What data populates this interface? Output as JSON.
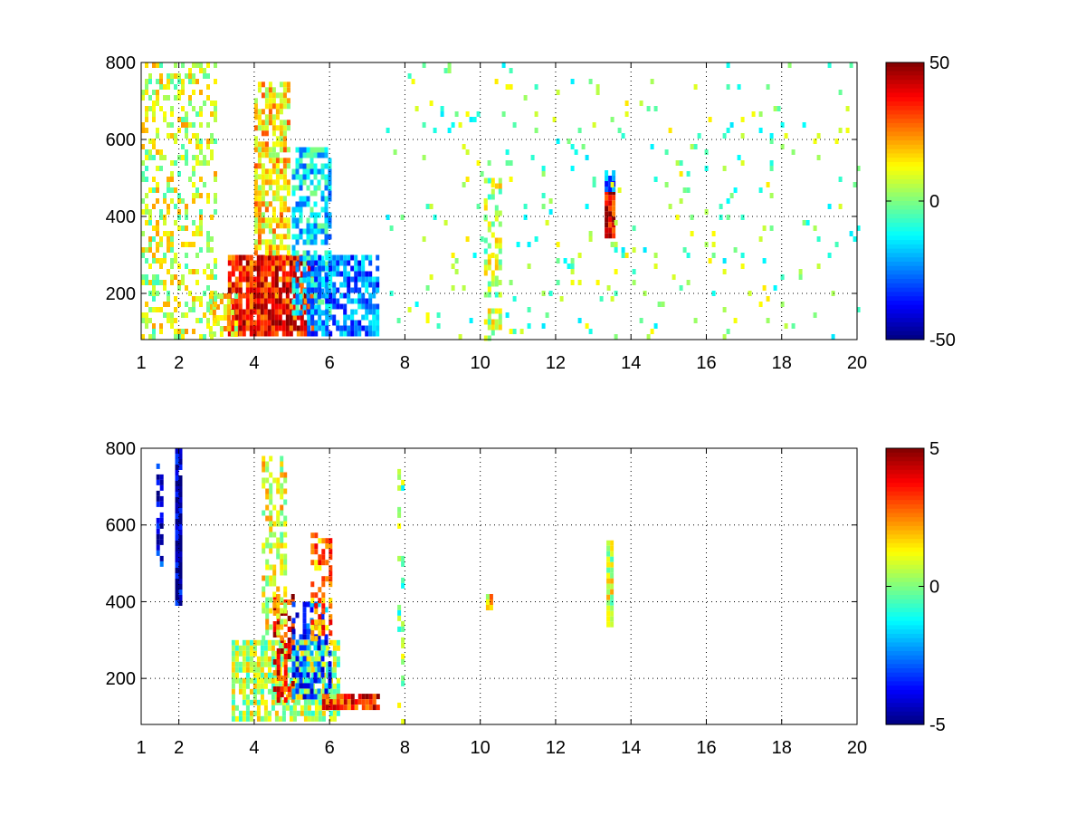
{
  "chart_data": [
    {
      "type": "heatmap",
      "title": "",
      "xlabel": "",
      "ylabel": "",
      "xlim": [
        1,
        20
      ],
      "ylim": [
        80,
        800
      ],
      "x_ticks": [
        1,
        2,
        4,
        6,
        8,
        10,
        12,
        14,
        16,
        18,
        20
      ],
      "x_tick_labels": [
        "1",
        "2",
        "4",
        "6",
        "8",
        "10",
        "12",
        "14",
        "16",
        "18",
        "20"
      ],
      "y_ticks": [
        200,
        400,
        600,
        800
      ],
      "y_tick_labels": [
        "200",
        "400",
        "600",
        "800"
      ],
      "grid": true,
      "colormap": "jet",
      "colorbar": {
        "min": -50,
        "max": 50,
        "ticks": [
          50,
          0,
          -50
        ],
        "tick_labels": [
          "50",
          "0",
          "-50"
        ]
      },
      "clusters": [
        {
          "x": [
            3.3,
            5.6
          ],
          "y": [
            100,
            300
          ],
          "value": 35,
          "density": 0.9
        },
        {
          "x": [
            4.0,
            4.9
          ],
          "y": [
            300,
            750
          ],
          "value": 15,
          "density": 0.7
        },
        {
          "x": [
            5.0,
            6.0
          ],
          "y": [
            150,
            580
          ],
          "value": -15,
          "density": 0.6
        },
        {
          "x": [
            5.4,
            7.3
          ],
          "y": [
            90,
            300
          ],
          "value": -25,
          "density": 0.7
        },
        {
          "x": [
            2.8,
            3.5
          ],
          "y": [
            90,
            200
          ],
          "value": 12,
          "density": 0.6
        },
        {
          "x": [
            1.0,
            3.0
          ],
          "y": [
            80,
            800
          ],
          "value": 8,
          "density": 0.35
        },
        {
          "x": [
            10.1,
            10.5
          ],
          "y": [
            80,
            500
          ],
          "value": 6,
          "density": 0.5
        },
        {
          "x": [
            13.3,
            13.5
          ],
          "y": [
            350,
            470
          ],
          "value": 40,
          "density": 1.0
        },
        {
          "x": [
            13.3,
            13.5
          ],
          "y": [
            470,
            520
          ],
          "value": -25,
          "density": 0.9
        },
        {
          "x": [
            7.5,
            20.0
          ],
          "y": [
            80,
            800
          ],
          "value": 0,
          "density": 0.05
        }
      ]
    },
    {
      "type": "heatmap",
      "title": "",
      "xlabel": "",
      "ylabel": "",
      "xlim": [
        1,
        20
      ],
      "ylim": [
        80,
        800
      ],
      "x_ticks": [
        1,
        2,
        4,
        6,
        8,
        10,
        12,
        14,
        16,
        18,
        20
      ],
      "x_tick_labels": [
        "1",
        "2",
        "4",
        "6",
        "8",
        "10",
        "12",
        "14",
        "16",
        "18",
        "20"
      ],
      "y_ticks": [
        200,
        400,
        600,
        800
      ],
      "y_tick_labels": [
        "200",
        "400",
        "600",
        "800"
      ],
      "grid": true,
      "colormap": "jet",
      "colorbar": {
        "min": -5,
        "max": 5,
        "ticks": [
          5,
          0,
          -5
        ],
        "tick_labels": [
          "5",
          "0",
          "-5"
        ]
      },
      "clusters": [
        {
          "x": [
            3.4,
            6.2
          ],
          "y": [
            100,
            300
          ],
          "value": 0.5,
          "density": 0.8
        },
        {
          "x": [
            5.8,
            7.3
          ],
          "y": [
            120,
            160
          ],
          "value": 3.5,
          "density": 0.9
        },
        {
          "x": [
            4.5,
            5.0
          ],
          "y": [
            150,
            420
          ],
          "value": 3.5,
          "density": 0.6
        },
        {
          "x": [
            5.0,
            6.0
          ],
          "y": [
            150,
            400
          ],
          "value": -3,
          "density": 0.5
        },
        {
          "x": [
            4.2,
            4.8
          ],
          "y": [
            300,
            780
          ],
          "value": 1,
          "density": 0.4
        },
        {
          "x": [
            5.5,
            6.0
          ],
          "y": [
            300,
            580
          ],
          "value": 2.5,
          "density": 0.5
        },
        {
          "x": [
            1.9,
            2.0
          ],
          "y": [
            400,
            800
          ],
          "value": -4.5,
          "density": 0.9
        },
        {
          "x": [
            1.4,
            1.5
          ],
          "y": [
            500,
            760
          ],
          "value": -4,
          "density": 0.7
        },
        {
          "x": [
            13.35,
            13.45
          ],
          "y": [
            340,
            560
          ],
          "value": 0.8,
          "density": 1.0
        },
        {
          "x": [
            10.15,
            10.3
          ],
          "y": [
            380,
            420
          ],
          "value": 1.5,
          "density": 1.0
        },
        {
          "x": [
            7.8,
            7.9
          ],
          "y": [
            80,
            760
          ],
          "value": 0,
          "density": 0.3
        }
      ]
    }
  ]
}
